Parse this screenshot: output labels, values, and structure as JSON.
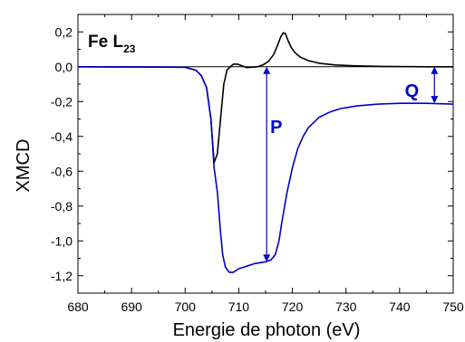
{
  "chart_data": {
    "type": "line",
    "title": "Fe L",
    "title_subscript": "23",
    "xlabel": "Energie de photon (eV)",
    "ylabel": "XMCD",
    "xlim": [
      680,
      750
    ],
    "ylim": [
      -1.3,
      0.3
    ],
    "xticks": [
      680,
      690,
      700,
      710,
      720,
      730,
      740,
      750
    ],
    "yticks": [
      0.2,
      0.0,
      -0.2,
      -0.4,
      -0.6,
      -0.8,
      -1.0,
      -1.2
    ],
    "ytick_labels": [
      "0,2",
      "0,0",
      "-0,2",
      "-0,4",
      "-0,6",
      "-0,8",
      "-1,0",
      "-1,2"
    ],
    "grid": false,
    "series": [
      {
        "color": "#000000",
        "x": [
          680,
          700,
          702,
          703,
          704,
          704.8,
          705.4,
          706,
          706.6,
          707.2,
          707.8,
          708.4,
          709,
          709.8,
          710.6,
          711.5,
          712.5,
          713.5,
          714.5,
          715.5,
          716.5,
          717.2,
          717.8,
          718.3,
          718.7,
          719.2,
          719.8,
          720.5,
          721.5,
          723,
          725,
          728,
          732,
          737,
          745,
          750
        ],
        "y": [
          0.0,
          -0.003,
          -0.02,
          -0.05,
          -0.12,
          -0.3,
          -0.55,
          -0.5,
          -0.3,
          -0.1,
          -0.02,
          0.0,
          0.015,
          0.015,
          0.005,
          -0.005,
          -0.003,
          0.0,
          0.01,
          0.03,
          0.07,
          0.12,
          0.17,
          0.195,
          0.19,
          0.15,
          0.11,
          0.08,
          0.055,
          0.035,
          0.02,
          0.01,
          0.005,
          0.002,
          0.0,
          0.0
        ]
      },
      {
        "color": "#0000cc",
        "x": [
          680,
          700,
          702,
          703,
          704,
          704.8,
          705.4,
          706,
          706.6,
          707,
          707.5,
          708.2,
          709,
          710,
          711,
          712,
          713,
          714,
          715,
          716,
          716.8,
          717.5,
          718,
          719,
          720,
          721,
          722,
          723,
          725,
          727,
          729,
          732,
          736,
          740,
          745,
          750
        ],
        "y": [
          0.0,
          -0.003,
          -0.02,
          -0.05,
          -0.12,
          -0.3,
          -0.58,
          -0.72,
          -0.95,
          -1.08,
          -1.15,
          -1.18,
          -1.18,
          -1.16,
          -1.15,
          -1.14,
          -1.13,
          -1.125,
          -1.12,
          -1.11,
          -1.08,
          -1.0,
          -0.9,
          -0.72,
          -0.58,
          -0.47,
          -0.4,
          -0.35,
          -0.29,
          -0.26,
          -0.24,
          -0.225,
          -0.215,
          -0.21,
          -0.21,
          -0.215
        ]
      }
    ],
    "annotations": [
      {
        "label": "P",
        "color": "#0000cc",
        "x": 715.2,
        "y_from": 0.0,
        "y_to": -1.12,
        "label_x": 717,
        "label_y": -0.34
      },
      {
        "label": "Q",
        "color": "#0000cc",
        "x": 746.5,
        "y_from": 0.0,
        "y_to": -0.21,
        "label_x": 742.3,
        "label_y": -0.13
      }
    ]
  }
}
